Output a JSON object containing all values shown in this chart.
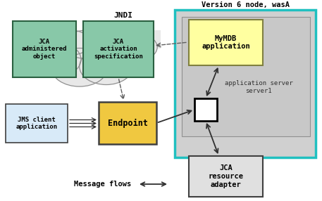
{
  "title": "Version 6 node, wasA",
  "bg_color": "#ffffff",
  "jndi_label": "JNDI",
  "jca_admin_label": "JCA\nadministered\nobject",
  "jca_activation_label": "JCA\nactivation\nspecification",
  "jca_admin_fill": "#88c8a8",
  "jca_activation_fill": "#88c8a8",
  "jca_box_ec": "#2a6040",
  "jms_client_label": "JMS client\napplication",
  "jms_client_fill": "#d8eaf8",
  "jms_client_ec": "#404040",
  "endpoint_label": "Endpoint",
  "endpoint_fill": "#f0c840",
  "endpoint_ec": "#404040",
  "mymdb_label": "MyMDB\napplication",
  "mymdb_fill": "#ffffa0",
  "mymdb_ec": "#808040",
  "jca_resource_label": "JCA\nresource\nadapter",
  "jca_resource_fill": "#e0e0e0",
  "jca_resource_ec": "#404040",
  "app_server_label": "application server\nserver1",
  "outer_fill": "#d0d0d0",
  "outer_ec": "#20c0c0",
  "inner_fill": "#c8c8c8",
  "inner_ec": "#909090",
  "cloud_fill": "#e8e8e8",
  "cloud_ec": "#909090",
  "connector_fill": "#ffffff",
  "connector_ec": "#000000",
  "message_flows_label": "Message flows",
  "arrow_color": "#303030",
  "dashed_color": "#606060"
}
